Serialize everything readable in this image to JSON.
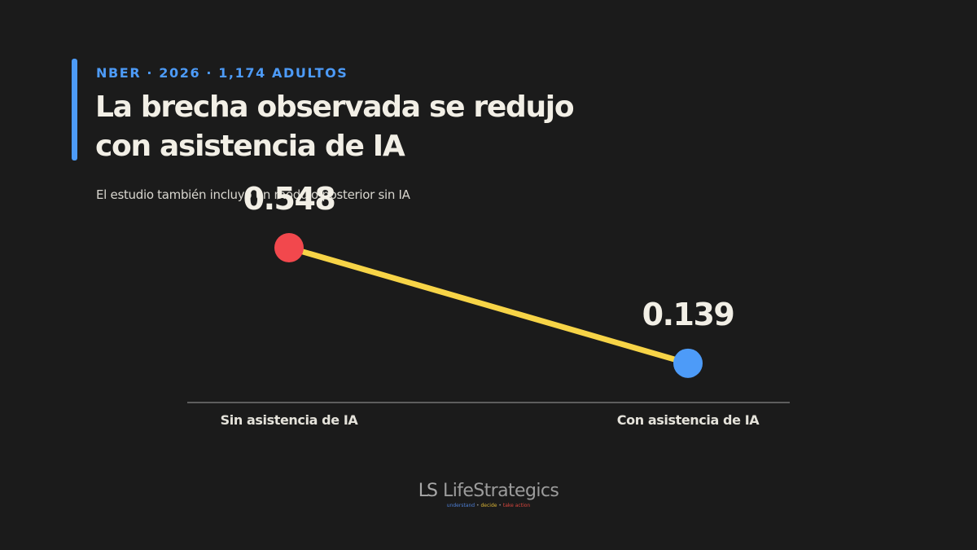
{
  "header": {
    "eyebrow": "NBER · 2026 · 1,174 ADULTOS",
    "title": "La brecha observada se redujo con asistencia de IA",
    "subtitle": "El estudio también incluyó un módulo posterior sin IA"
  },
  "chart_data": {
    "type": "line",
    "categories": [
      "Sin asistencia de IA",
      "Con asistencia de IA"
    ],
    "values": [
      0.548,
      0.139
    ],
    "value_labels": [
      "0.548",
      "0.139"
    ],
    "point_colors": [
      "#f2484d",
      "#4d9bf8"
    ],
    "line_color": "#f7d447",
    "ylim": [
      0,
      0.6
    ],
    "grid": false,
    "xlabel": "",
    "ylabel": ""
  },
  "footer": {
    "logo_mark": "LS",
    "brand": "LifeStrategics",
    "tagline": {
      "understand": "understand",
      "decide": "decide",
      "action": "take action",
      "separator": "•"
    }
  },
  "colors": {
    "background": "#1b1b1b",
    "accent": "#4d9bf8",
    "text": "#f2efe6",
    "axis": "#5e5e5e"
  }
}
